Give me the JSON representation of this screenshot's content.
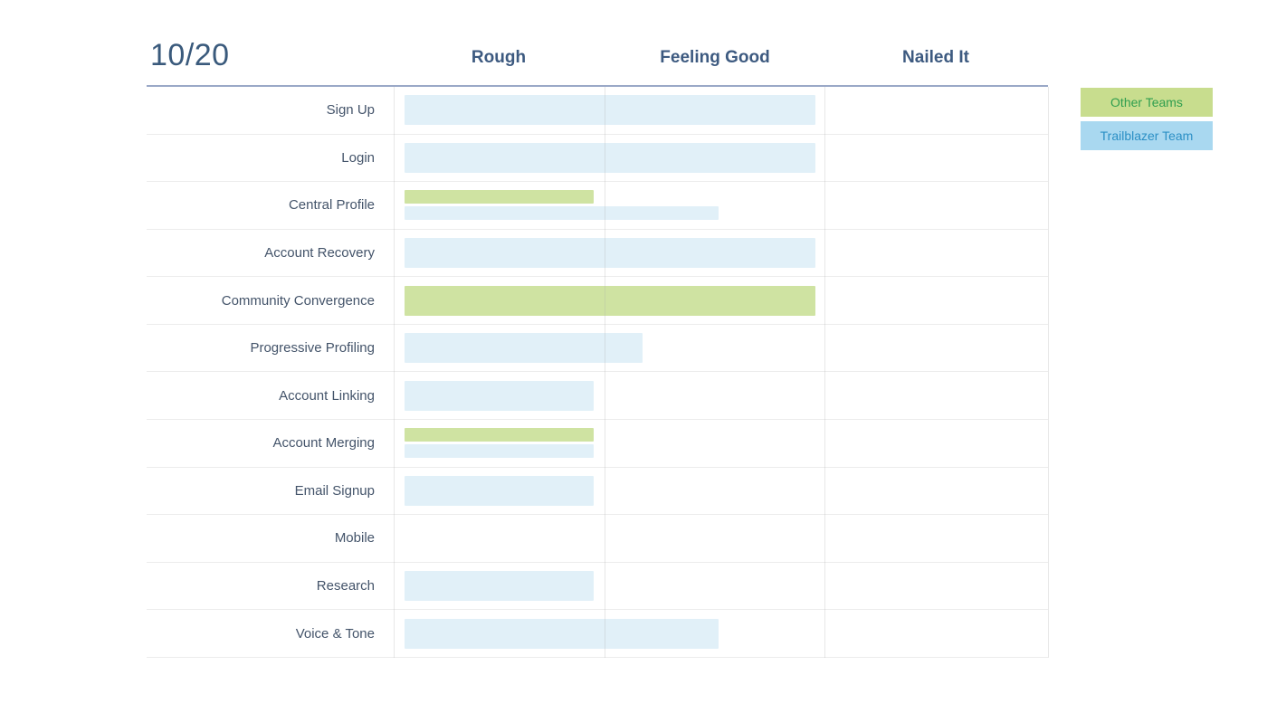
{
  "title": "10/20",
  "columns": [
    "Rough",
    "Feeling Good",
    "Nailed It"
  ],
  "legend": [
    {
      "label": "Other Teams",
      "team": "other",
      "bg": "#c8dd8e",
      "text_color": "#2f9e4f"
    },
    {
      "label": "Trailblazer Team",
      "team": "trailblazer",
      "bg": "#a9d8f0",
      "text_color": "#2b8fc5"
    }
  ],
  "colors": {
    "other_bar": "#cfe3a2",
    "trailblazer_bar": "#e1f0f8",
    "title_text": "#3a5a7c",
    "header_text": "#3d5a80",
    "label_text": "#44546a",
    "header_rule": "#9aa8c7",
    "grid_line": "#ececec"
  },
  "chart_data": {
    "type": "bar",
    "orientation": "horizontal",
    "title": "10/20",
    "stages": [
      "Rough",
      "Feeling Good",
      "Nailed It"
    ],
    "scale": {
      "min": 0,
      "max": 3,
      "unit": "stage (1 = Rough complete, 2 = Feeling Good complete, 3 = Nailed It complete)"
    },
    "legend_position": "top-right",
    "rows": [
      {
        "label": "Sign Up",
        "bars": [
          {
            "team": "trailblazer",
            "score": 2.0
          }
        ]
      },
      {
        "label": "Login",
        "bars": [
          {
            "team": "trailblazer",
            "score": 2.0
          }
        ]
      },
      {
        "label": "Central Profile",
        "bars": [
          {
            "team": "other",
            "score": 0.95
          },
          {
            "team": "trailblazer",
            "score": 1.54
          }
        ]
      },
      {
        "label": "Account Recovery",
        "bars": [
          {
            "team": "trailblazer",
            "score": 2.0
          }
        ]
      },
      {
        "label": "Community Convergence",
        "bars": [
          {
            "team": "other",
            "score": 2.0
          }
        ]
      },
      {
        "label": "Progressive Profiling",
        "bars": [
          {
            "team": "trailblazer",
            "score": 1.18
          }
        ]
      },
      {
        "label": "Account Linking",
        "bars": [
          {
            "team": "trailblazer",
            "score": 0.95
          }
        ]
      },
      {
        "label": "Account Merging",
        "bars": [
          {
            "team": "other",
            "score": 0.95
          },
          {
            "team": "trailblazer",
            "score": 0.95
          }
        ]
      },
      {
        "label": "Email Signup",
        "bars": [
          {
            "team": "trailblazer",
            "score": 0.95
          }
        ]
      },
      {
        "label": "Mobile",
        "bars": []
      },
      {
        "label": "Research",
        "bars": [
          {
            "team": "trailblazer",
            "score": 0.95
          }
        ]
      },
      {
        "label": "Voice & Tone",
        "bars": [
          {
            "team": "trailblazer",
            "score": 1.54
          }
        ]
      }
    ]
  }
}
